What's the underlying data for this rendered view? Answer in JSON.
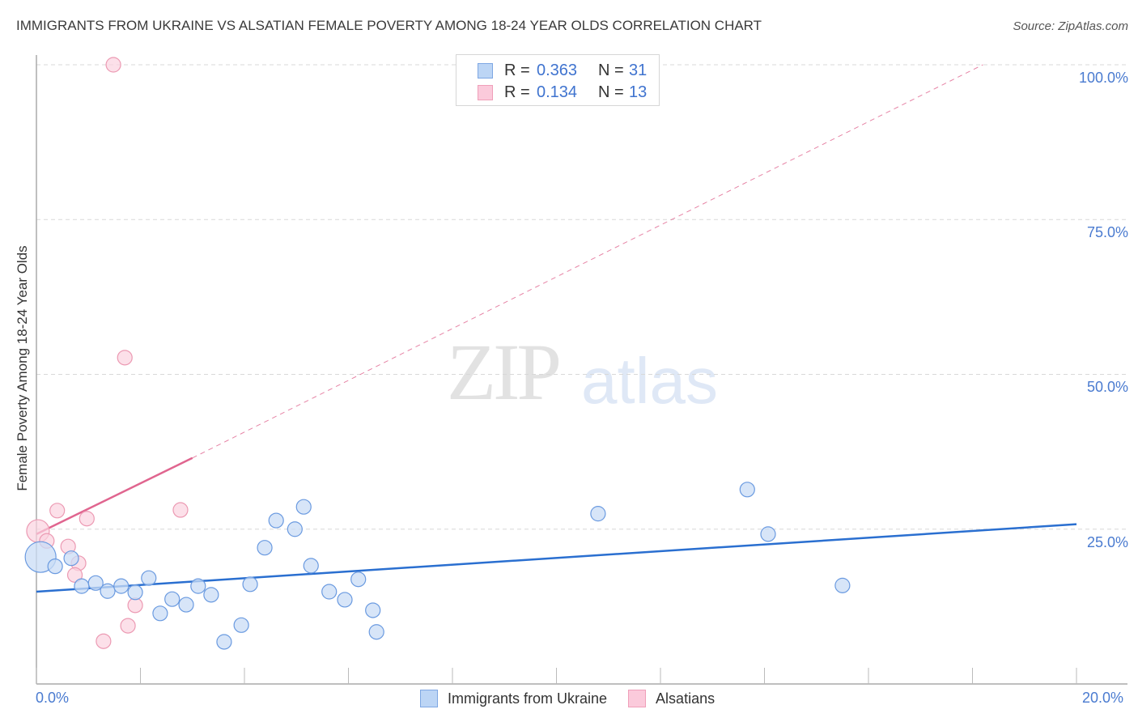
{
  "header": {
    "title": "IMMIGRANTS FROM UKRAINE VS ALSATIAN FEMALE POVERTY AMONG 18-24 YEAR OLDS CORRELATION CHART",
    "source": "Source: ZipAtlas.com"
  },
  "watermark": {
    "zip": "ZIP",
    "atlas": "atlas"
  },
  "axes": {
    "y_label": "Female Poverty Among 18-24 Year Olds",
    "y_ticks": [
      "100.0%",
      "75.0%",
      "50.0%",
      "25.0%"
    ],
    "x_min_label": "0.0%",
    "x_max_label": "20.0%"
  },
  "legend_stats": [
    {
      "r_label": "R =",
      "r_value": "0.363",
      "n_label": "N =",
      "n_value": "31",
      "color": "#a8c8f0"
    },
    {
      "r_label": "R =",
      "r_value": "0.134",
      "n_label": "N =",
      "n_value": "13",
      "color": "#f7b8cc"
    }
  ],
  "legend_series": [
    {
      "label": "Immigrants from Ukraine",
      "color": "#a8c8f0",
      "border": "#6b9be0"
    },
    {
      "label": "Alsatians",
      "color": "#f7c1d2",
      "border": "#e890aa"
    }
  ],
  "colors": {
    "blue_fill": "#c9dcf5",
    "blue_stroke": "#6a9ae0",
    "blue_line": "#2a6fd0",
    "pink_fill": "#fbd3df",
    "pink_stroke": "#ec9ab3",
    "pink_line": "#e0658f",
    "grid": "#d8d8d8",
    "tick_label": "#4a7bd0"
  },
  "chart_data": {
    "type": "scatter",
    "title": "IMMIGRANTS FROM UKRAINE VS ALSATIAN FEMALE POVERTY AMONG 18-24 YEAR OLDS CORRELATION CHART",
    "xlabel": "Immigrants from Ukraine",
    "ylabel": "Female Poverty Among 18-24 Year Olds",
    "xlim": [
      0,
      20
    ],
    "ylim": [
      0,
      100
    ],
    "x_ticks": [
      "0.0%",
      "20.0%"
    ],
    "y_ticks": [
      "25.0%",
      "50.0%",
      "75.0%",
      "100.0%"
    ],
    "grid": "horizontal dashed",
    "legend_position": "top-center and bottom",
    "series": [
      {
        "name": "Immigrants from Ukraine",
        "r": 0.363,
        "n": 31,
        "points": [
          [
            0.08,
            20.5
          ],
          [
            0.36,
            19.0
          ],
          [
            0.67,
            20.3
          ],
          [
            0.87,
            15.8
          ],
          [
            1.14,
            16.3
          ],
          [
            1.37,
            15.0
          ],
          [
            1.63,
            15.8
          ],
          [
            1.9,
            14.8
          ],
          [
            2.16,
            17.1
          ],
          [
            2.38,
            11.4
          ],
          [
            2.61,
            13.7
          ],
          [
            2.88,
            12.8
          ],
          [
            3.11,
            15.8
          ],
          [
            3.36,
            14.4
          ],
          [
            3.61,
            6.8
          ],
          [
            3.94,
            9.5
          ],
          [
            4.11,
            16.1
          ],
          [
            4.39,
            22.0
          ],
          [
            4.61,
            26.4
          ],
          [
            4.97,
            25.0
          ],
          [
            5.14,
            28.6
          ],
          [
            5.28,
            19.1
          ],
          [
            5.63,
            14.9
          ],
          [
            5.93,
            13.6
          ],
          [
            6.19,
            16.9
          ],
          [
            6.47,
            11.9
          ],
          [
            6.54,
            8.4
          ],
          [
            10.8,
            27.5
          ],
          [
            13.67,
            31.4
          ],
          [
            14.07,
            24.2
          ],
          [
            15.5,
            15.9
          ]
        ],
        "trend": {
          "x": [
            0,
            20
          ],
          "y": [
            14.9,
            25.8
          ],
          "style": "solid"
        }
      },
      {
        "name": "Alsatians",
        "r": 0.134,
        "n": 13,
        "points": [
          [
            0.03,
            24.7
          ],
          [
            0.2,
            23.1
          ],
          [
            0.4,
            28.0
          ],
          [
            0.61,
            22.2
          ],
          [
            0.81,
            19.5
          ],
          [
            0.74,
            17.6
          ],
          [
            0.97,
            26.7
          ],
          [
            1.29,
            6.9
          ],
          [
            1.48,
            100.0
          ],
          [
            1.7,
            52.7
          ],
          [
            1.76,
            9.4
          ],
          [
            1.9,
            12.7
          ],
          [
            2.77,
            28.1
          ]
        ],
        "trend": {
          "x": [
            0,
            3.0,
            18.2
          ],
          "y": [
            24.2,
            36.5,
            100.0
          ],
          "style": "solid to 3%, dashed beyond"
        }
      }
    ]
  }
}
